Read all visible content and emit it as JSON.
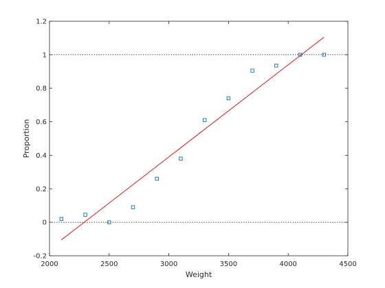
{
  "chart_data": {
    "type": "scatter",
    "title": "",
    "xlabel": "Weight",
    "ylabel": "Proportion",
    "xlim": [
      2000,
      4500
    ],
    "ylim": [
      -0.2,
      1.2
    ],
    "xticks": [
      2000,
      2500,
      3000,
      3500,
      4000,
      4500
    ],
    "yticks": [
      -0.2,
      0,
      0.2,
      0.4,
      0.6,
      0.8,
      1,
      1.2
    ],
    "ytick_labels": [
      "-0.2",
      "0",
      "0.2",
      "0.4",
      "0.6",
      "0.8",
      "1",
      "1.2"
    ],
    "grid": false,
    "reference_lines_y": [
      0,
      1
    ],
    "points": {
      "color": "#0072bd",
      "marker": "square",
      "x": [
        2100,
        2300,
        2500,
        2700,
        2900,
        3100,
        3300,
        3500,
        3700,
        3900,
        4100,
        4300
      ],
      "y": [
        0.02,
        0.045,
        0.0,
        0.09,
        0.26,
        0.38,
        0.61,
        0.74,
        0.905,
        0.935,
        1.0,
        1.0
      ]
    },
    "fit_line": {
      "color": "#dd0000",
      "x": [
        2100,
        4300
      ],
      "y": [
        -0.105,
        1.105
      ]
    }
  }
}
